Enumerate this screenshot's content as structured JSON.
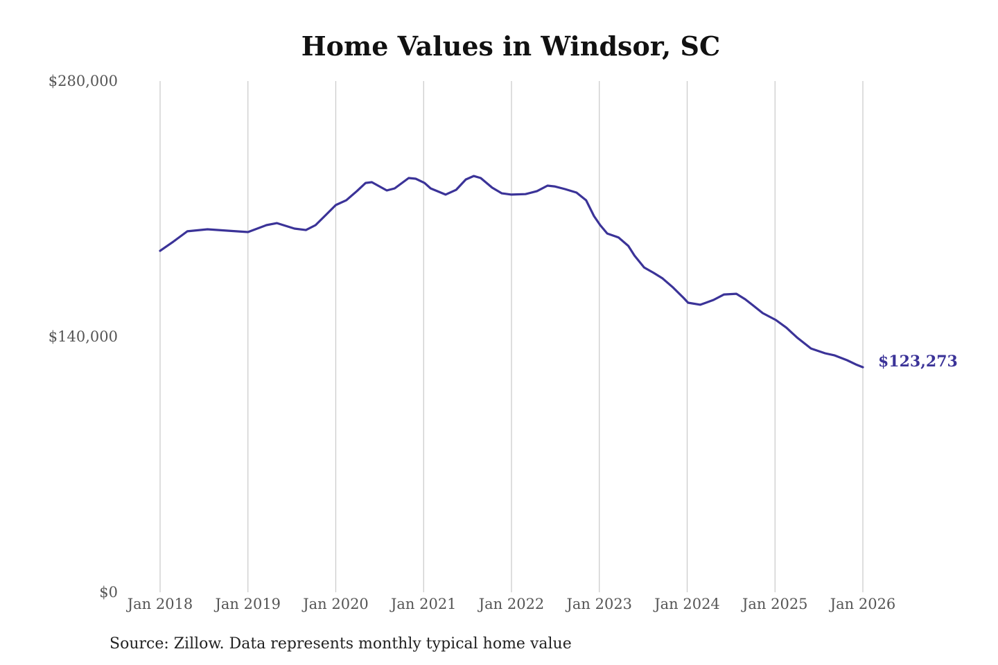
{
  "chart_data": {
    "type": "line",
    "title": "Home Values in Windsor, SC",
    "xlabel": "",
    "ylabel": "",
    "source": "Source: Zillow. Data represents monthly typical home value",
    "ylim": [
      0,
      280000
    ],
    "xlim": [
      2018,
      2026
    ],
    "grid": "vertical",
    "y_ticks": [
      {
        "value": 0,
        "label": "$0"
      },
      {
        "value": 140000,
        "label": "$140,000"
      },
      {
        "value": 280000,
        "label": "$280,000"
      }
    ],
    "x_ticks": [
      {
        "value": 2018,
        "label": "Jan 2018"
      },
      {
        "value": 2019,
        "label": "Jan 2019"
      },
      {
        "value": 2020,
        "label": "Jan 2020"
      },
      {
        "value": 2021,
        "label": "Jan 2021"
      },
      {
        "value": 2022,
        "label": "Jan 2022"
      },
      {
        "value": 2023,
        "label": "Jan 2023"
      },
      {
        "value": 2024,
        "label": "Jan 2024"
      },
      {
        "value": 2025,
        "label": "Jan 2025"
      },
      {
        "value": 2026,
        "label": "Jan 2026"
      }
    ],
    "series": [
      {
        "name": "Typical home value",
        "color": "#3b3398",
        "end_label": "$123,273",
        "points": [
          [
            2018.0,
            187000
          ],
          [
            2018.15,
            192000
          ],
          [
            2018.31,
            197700
          ],
          [
            2018.54,
            198800
          ],
          [
            2018.78,
            198000
          ],
          [
            2019.0,
            197300
          ],
          [
            2019.21,
            201100
          ],
          [
            2019.33,
            202200
          ],
          [
            2019.53,
            199200
          ],
          [
            2019.66,
            198400
          ],
          [
            2019.77,
            201100
          ],
          [
            2019.89,
            206800
          ],
          [
            2020.0,
            212100
          ],
          [
            2020.12,
            214700
          ],
          [
            2020.24,
            219700
          ],
          [
            2020.34,
            224200
          ],
          [
            2020.41,
            224600
          ],
          [
            2020.58,
            220100
          ],
          [
            2020.67,
            221200
          ],
          [
            2020.83,
            226900
          ],
          [
            2020.91,
            226500
          ],
          [
            2021.01,
            224200
          ],
          [
            2021.08,
            221200
          ],
          [
            2021.25,
            217800
          ],
          [
            2021.37,
            220400
          ],
          [
            2021.48,
            226100
          ],
          [
            2021.57,
            228000
          ],
          [
            2021.65,
            226900
          ],
          [
            2021.78,
            221600
          ],
          [
            2021.89,
            218500
          ],
          [
            2022.0,
            217800
          ],
          [
            2022.16,
            218100
          ],
          [
            2022.29,
            219700
          ],
          [
            2022.41,
            222700
          ],
          [
            2022.49,
            222300
          ],
          [
            2022.61,
            220800
          ],
          [
            2022.74,
            218900
          ],
          [
            2022.85,
            214700
          ],
          [
            2022.94,
            206000
          ],
          [
            2023.01,
            201100
          ],
          [
            2023.09,
            196500
          ],
          [
            2023.22,
            194300
          ],
          [
            2023.33,
            189700
          ],
          [
            2023.4,
            184400
          ],
          [
            2023.51,
            177900
          ],
          [
            2023.62,
            174900
          ],
          [
            2023.72,
            171900
          ],
          [
            2023.84,
            166900
          ],
          [
            2023.96,
            161200
          ],
          [
            2024.01,
            158600
          ],
          [
            2024.15,
            157500
          ],
          [
            2024.3,
            160100
          ],
          [
            2024.42,
            163100
          ],
          [
            2024.56,
            163500
          ],
          [
            2024.66,
            160500
          ],
          [
            2024.74,
            157500
          ],
          [
            2024.86,
            152900
          ],
          [
            2025.01,
            149100
          ],
          [
            2025.13,
            144900
          ],
          [
            2025.25,
            139600
          ],
          [
            2025.41,
            133500
          ],
          [
            2025.57,
            130900
          ],
          [
            2025.68,
            129700
          ],
          [
            2025.82,
            127100
          ],
          [
            2025.92,
            124800
          ],
          [
            2026.0,
            123273
          ]
        ]
      }
    ]
  }
}
